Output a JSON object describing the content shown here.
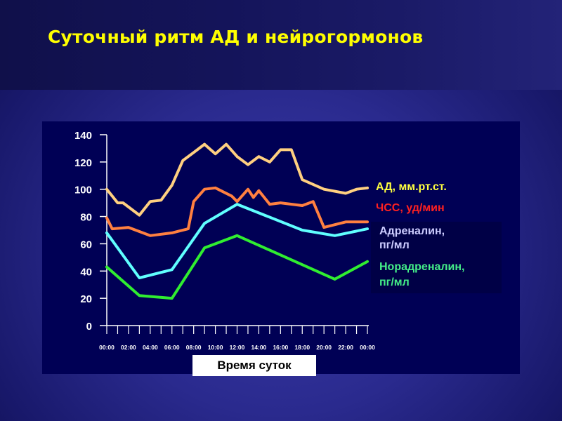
{
  "slide": {
    "title": "Суточный ритм АД и нейрогормонов"
  },
  "chart_data": {
    "type": "line",
    "xlabel": "Время суток",
    "ylabel": "",
    "ylim": [
      0,
      140
    ],
    "yticks": [
      0,
      20,
      40,
      60,
      80,
      100,
      120,
      140
    ],
    "xlim": [
      0,
      24
    ],
    "xtick_labels": [
      "00:00",
      "02:00",
      "04:00",
      "06:00",
      "08:00",
      "10:00",
      "12:00",
      "14:00",
      "16:00",
      "18:00",
      "20:00",
      "22:00",
      "00:00"
    ],
    "xtick_hours": [
      0,
      2,
      4,
      6,
      8,
      10,
      12,
      14,
      16,
      18,
      20,
      22,
      24
    ],
    "grid": false,
    "legend_position": "right",
    "series": [
      {
        "name": "АД, мм.рт.ст.",
        "color": "#ffd080",
        "hours": [
          0,
          1,
          1.5,
          3,
          4,
          5,
          6,
          7,
          8,
          9,
          10,
          11,
          12,
          13,
          14,
          15,
          16,
          17,
          18,
          20,
          22,
          23,
          24
        ],
        "values": [
          100,
          90,
          90,
          81,
          91,
          92,
          103,
          121,
          127,
          133,
          126,
          133,
          124,
          118,
          124,
          120,
          129,
          129,
          107,
          100,
          97,
          100,
          101
        ]
      },
      {
        "name": "ЧСС, уд/мин",
        "color": "#ff8040",
        "hours": [
          0,
          0.5,
          2,
          4,
          6,
          7.5,
          8,
          9,
          10,
          11.5,
          12,
          13,
          13.5,
          14,
          15,
          16,
          18,
          19,
          20,
          22,
          24
        ],
        "values": [
          79,
          71,
          72,
          66,
          68,
          71,
          91,
          100,
          101,
          95,
          91,
          100,
          94,
          99,
          89,
          90,
          88,
          91,
          72,
          76,
          76
        ]
      },
      {
        "name": "Адреналин, пг/мл",
        "color": "#60ffff",
        "hours": [
          0,
          3,
          6,
          9,
          12,
          18,
          21,
          24
        ],
        "values": [
          68,
          35,
          41,
          75,
          89,
          70,
          66,
          71
        ]
      },
      {
        "name": "Норадреналин, пг/мл",
        "color": "#30ee30",
        "hours": [
          0,
          3,
          6,
          9,
          12,
          21,
          24
        ],
        "values": [
          43,
          22,
          20,
          57,
          66,
          34,
          47
        ]
      }
    ],
    "legend": [
      {
        "label": "АД, мм.рт.ст.",
        "color": "#ffff40"
      },
      {
        "label": "ЧСС, уд/мин",
        "color": "#ff2020"
      },
      {
        "label_lines": [
          "Адреналин,",
          "пг/мл"
        ],
        "color": "#ccccff"
      },
      {
        "label_lines": [
          "Норадреналин,",
          "пг/мл"
        ],
        "color": "#44ee88"
      }
    ]
  }
}
